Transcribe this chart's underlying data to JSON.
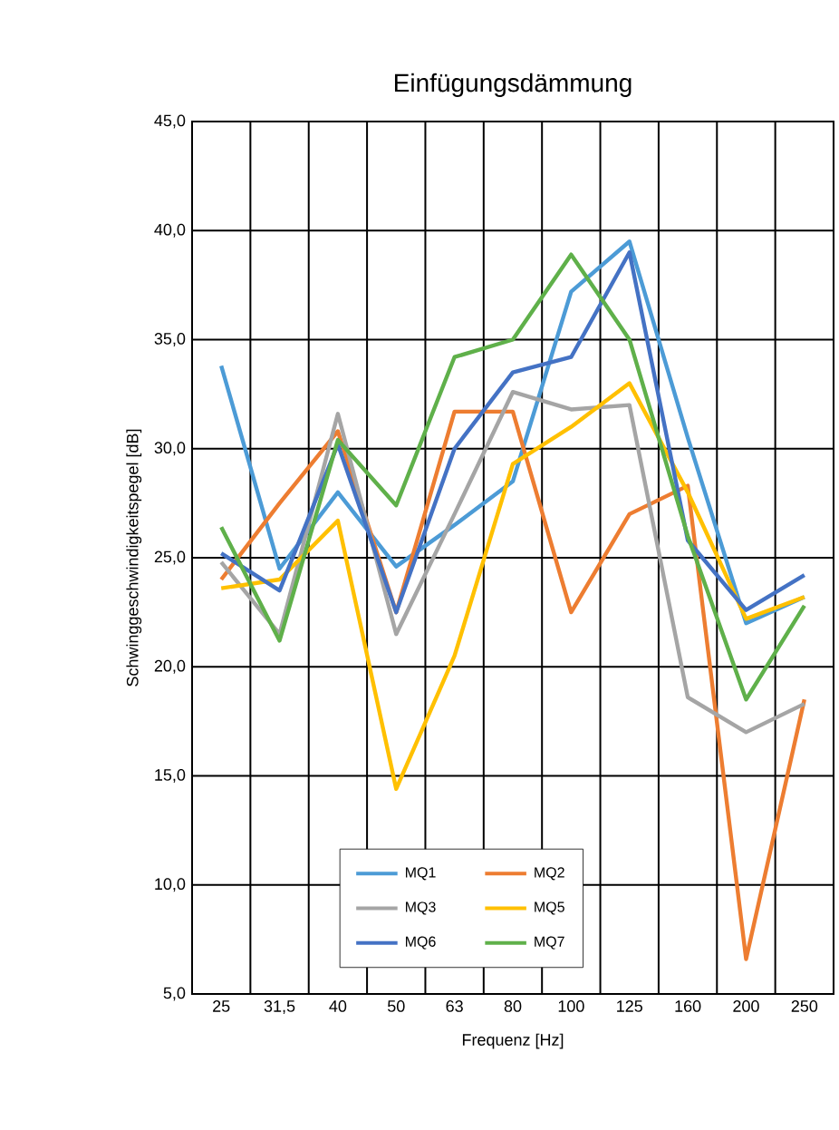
{
  "chart_data": {
    "type": "line",
    "title": "Einfügungsdämmung",
    "xlabel": "Frequenz [Hz]",
    "ylabel": "Schwinggeschwindigkeitspegel [dB]",
    "categories": [
      "25",
      "31,5",
      "40",
      "50",
      "63",
      "80",
      "100",
      "125",
      "160",
      "200",
      "250"
    ],
    "series": [
      {
        "name": "MQ1",
        "color": "#4c9bd6",
        "values": [
          33.8,
          24.5,
          28,
          24.6,
          26.5,
          28.5,
          37.2,
          39.5,
          30.5,
          22,
          23.2
        ]
      },
      {
        "name": "MQ2",
        "color": "#ed7d31",
        "values": [
          24,
          27.5,
          30.8,
          22.5,
          31.7,
          31.7,
          22.5,
          27,
          28.3,
          6.6,
          18.5
        ]
      },
      {
        "name": "MQ3",
        "color": "#a5a5a5",
        "values": [
          24.8,
          21.5,
          31.6,
          21.5,
          27,
          32.6,
          31.8,
          32,
          18.6,
          17,
          18.3
        ]
      },
      {
        "name": "MQ5",
        "color": "#ffc000",
        "values": [
          23.6,
          24,
          26.7,
          14.4,
          20.5,
          29.3,
          31,
          33,
          28,
          22.2,
          23.2
        ]
      },
      {
        "name": "MQ6",
        "color": "#4472c4",
        "values": [
          25.2,
          23.5,
          30.2,
          22.5,
          30,
          33.5,
          34.2,
          39,
          25.8,
          22.6,
          24.2
        ]
      },
      {
        "name": "MQ7",
        "color": "#5fb04a",
        "values": [
          26.4,
          21.2,
          30.4,
          27.4,
          34.2,
          35,
          38.9,
          35,
          26,
          18.5,
          22.8
        ]
      }
    ],
    "ylim": [
      5,
      45
    ],
    "yticks": [
      {
        "value": 5,
        "label": "5,0"
      },
      {
        "value": 10,
        "label": "10,0"
      },
      {
        "value": 15,
        "label": "15,0"
      },
      {
        "value": 20,
        "label": "20,0"
      },
      {
        "value": 25,
        "label": "25,0"
      },
      {
        "value": 30,
        "label": "30,0"
      },
      {
        "value": 35,
        "label": "35,0"
      },
      {
        "value": 40,
        "label": "40,0"
      },
      {
        "value": 45,
        "label": "45,0"
      }
    ],
    "grid": true,
    "legend": "bottom",
    "marker": "none",
    "line_style": "solid"
  }
}
